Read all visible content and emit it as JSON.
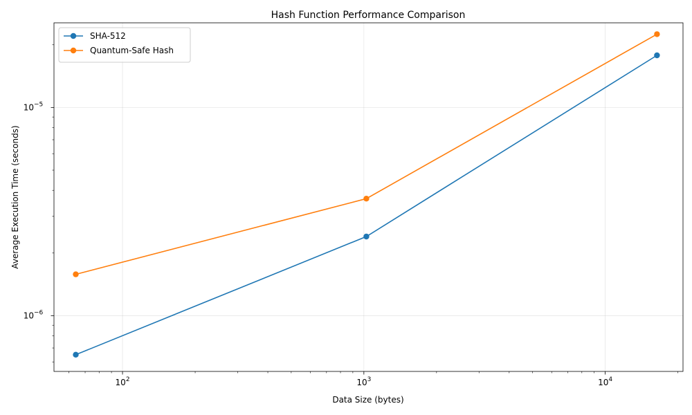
{
  "chart_data": {
    "type": "line",
    "title": "Hash Function Performance Comparison",
    "xlabel": "Data Size (bytes)",
    "ylabel": "Average Execution Time (seconds)",
    "xscale": "log",
    "yscale": "log",
    "xlim": [
      52,
      21000
    ],
    "ylim": [
      5.4e-07,
      2.55e-05
    ],
    "x_ticks": [
      {
        "value": 100,
        "base": "10",
        "exp": "2"
      },
      {
        "value": 1000,
        "base": "10",
        "exp": "3"
      },
      {
        "value": 10000,
        "base": "10",
        "exp": "4"
      }
    ],
    "y_ticks": [
      {
        "value": 1e-06,
        "base": "10",
        "exp": "−6"
      },
      {
        "value": 1e-05,
        "base": "10",
        "exp": "−5"
      }
    ],
    "grid": true,
    "legend_position": "top-left",
    "x": [
      64,
      1024,
      16384
    ],
    "series": [
      {
        "name": "SHA-512",
        "color": "#1f77b4",
        "values": [
          6.5e-07,
          2.4e-06,
          1.78e-05
        ]
      },
      {
        "name": "Quantum-Safe Hash",
        "color": "#ff7f0e",
        "values": [
          1.58e-06,
          3.65e-06,
          2.25e-05
        ]
      }
    ]
  }
}
